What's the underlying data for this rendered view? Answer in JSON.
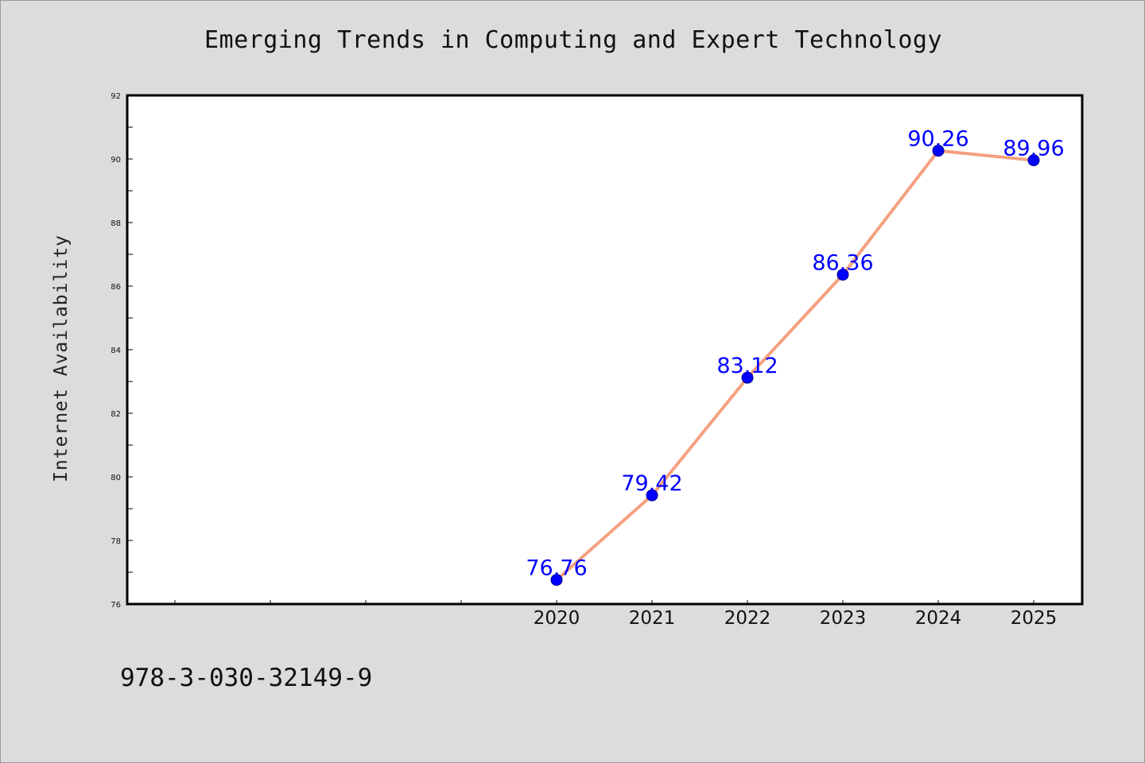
{
  "title": "Emerging Trends in Computing and Expert Technology",
  "isbn": "978-3-030-32149-9",
  "chart_data": {
    "type": "line",
    "title": "Emerging Trends in Computing and Expert Technology",
    "xlabel": "",
    "ylabel": "Internet Availability",
    "categories": [
      "2020",
      "2021",
      "2022",
      "2023",
      "2024",
      "2025"
    ],
    "values": [
      76.76,
      79.42,
      83.12,
      86.36,
      90.26,
      89.96
    ],
    "data_labels": [
      "76.76",
      "79.42",
      "83.12",
      "86.36",
      "90.26",
      "89.96"
    ],
    "ylim": [
      76,
      92
    ],
    "yticks": [
      "76",
      "78",
      "80",
      "82",
      "84",
      "86",
      "88",
      "90",
      "92"
    ],
    "grid": false,
    "legend": "none",
    "colors": {
      "line": "#f4a07f",
      "marker": "#0000ff",
      "label": "#0000ff",
      "background": "#dcdcdc",
      "plot_background": "#ffffff"
    }
  }
}
